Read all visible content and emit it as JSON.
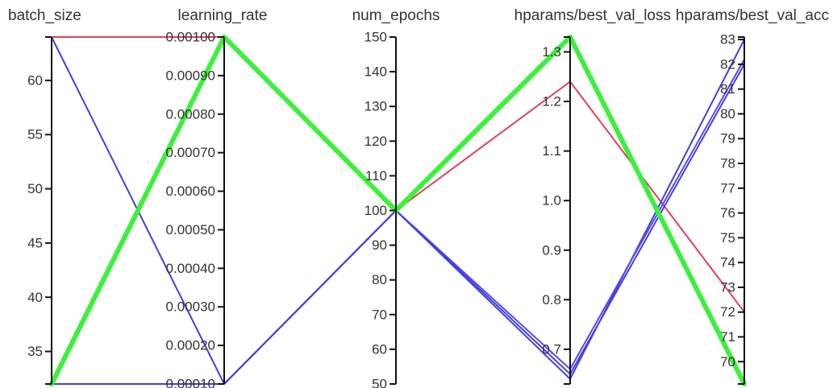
{
  "chart_data": {
    "type": "parallel_coordinates",
    "axes": [
      {
        "name": "batch_size",
        "min": 32,
        "max": 64,
        "ticks": [
          35,
          40,
          45,
          50,
          55,
          60
        ],
        "tick_labels": [
          "35",
          "40",
          "45",
          "50",
          "55",
          "60"
        ]
      },
      {
        "name": "learning_rate",
        "min": 0.0001,
        "max": 0.001,
        "ticks": [
          0.0001,
          0.0002,
          0.0003,
          0.0004,
          0.0005,
          0.0006,
          0.0007,
          0.0008,
          0.0009,
          0.001
        ],
        "tick_labels": [
          "0.00010",
          "0.00020",
          "0.00030",
          "0.00040",
          "0.00050",
          "0.00060",
          "0.00070",
          "0.00080",
          "0.00090",
          "0.00100"
        ]
      },
      {
        "name": "num_epochs",
        "min": 50,
        "max": 150,
        "ticks": [
          50,
          60,
          70,
          80,
          90,
          100,
          110,
          120,
          130,
          140,
          150
        ],
        "tick_labels": [
          "50",
          "60",
          "70",
          "80",
          "90",
          "100",
          "110",
          "120",
          "130",
          "140",
          "150"
        ]
      },
      {
        "name": "hparams/best_val_loss",
        "min": 0.63,
        "max": 1.33,
        "ticks": [
          0.7,
          0.8,
          0.9,
          1.0,
          1.1,
          1.2,
          1.3
        ],
        "tick_labels": [
          "0.7",
          "0.8",
          "0.9",
          "1.0",
          "1.1",
          "1.2",
          "1.3"
        ]
      },
      {
        "name": "hparams/best_val_acc",
        "min": 69.1,
        "max": 83.1,
        "ticks": [
          70,
          71,
          72,
          73,
          74,
          75,
          76,
          77,
          78,
          79,
          80,
          81,
          82,
          83
        ],
        "tick_labels": [
          "70",
          "71",
          "72",
          "73",
          "74",
          "75",
          "76",
          "77",
          "78",
          "79",
          "80",
          "81",
          "82",
          "83"
        ]
      }
    ],
    "series": [
      {
        "color": "#e0405e",
        "width": 2,
        "values": [
          64,
          0.001,
          100,
          1.24,
          72.0
        ]
      },
      {
        "color": "#4040e0",
        "width": 2,
        "values": [
          64,
          0.0001,
          100,
          0.64,
          83.0
        ]
      },
      {
        "color": "#5c48e8",
        "width": 2,
        "values": [
          32,
          0.0001,
          100,
          0.66,
          82.2
        ]
      },
      {
        "color": "#4040e0",
        "width": 2,
        "values": [
          32,
          0.0001,
          100,
          0.65,
          82.0
        ]
      },
      {
        "color": "#3cf03c",
        "width": 6,
        "values": [
          32,
          0.001,
          100,
          1.33,
          69.1
        ]
      }
    ]
  }
}
